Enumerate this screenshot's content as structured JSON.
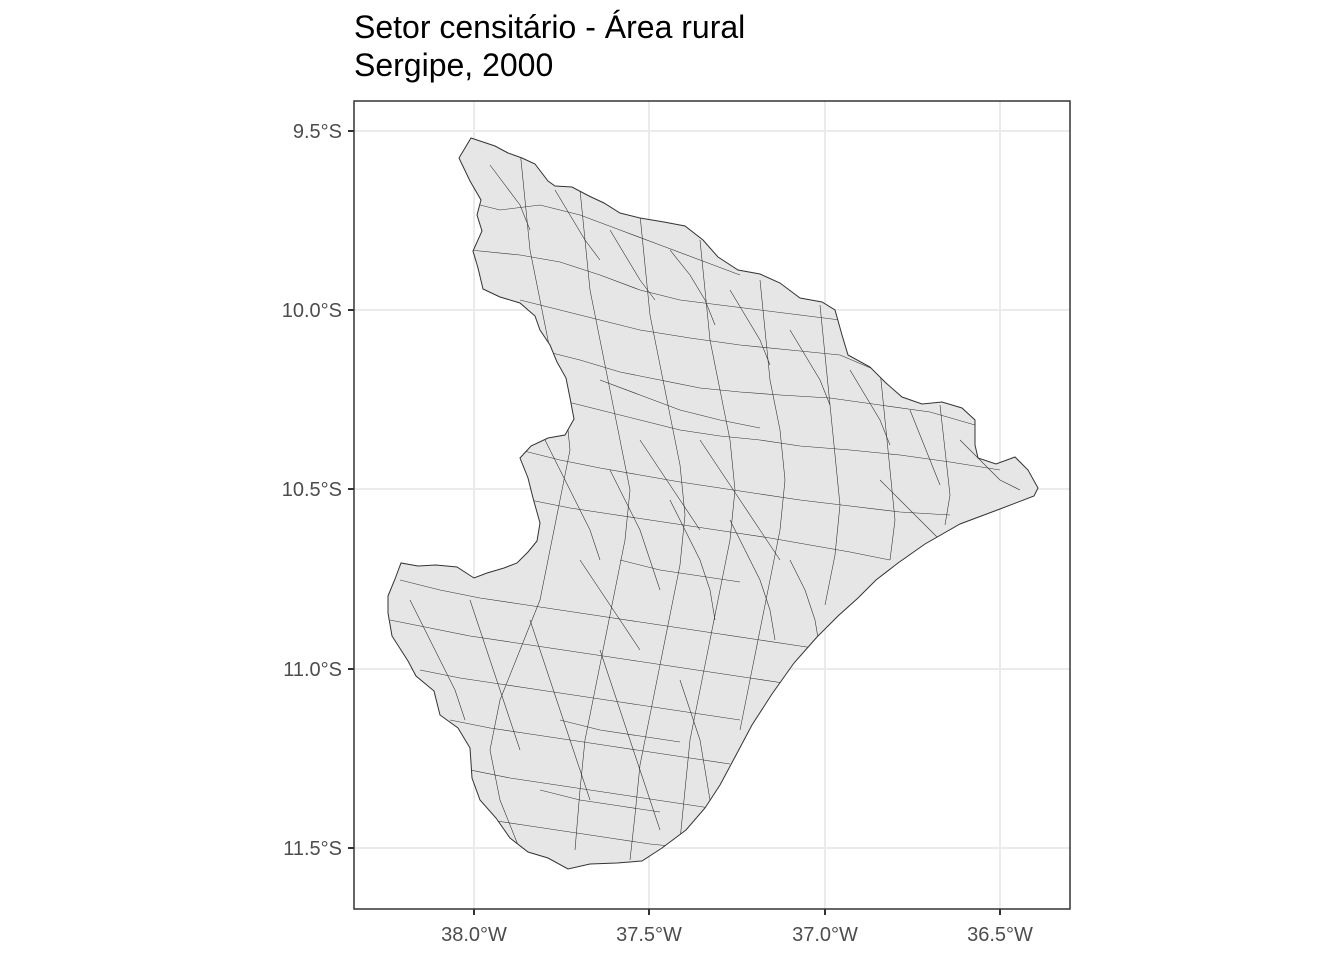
{
  "title": "Setor censitário - Área rural",
  "subtitle": "Sergipe, 2000",
  "axes": {
    "x_ticks": [
      "38.0°W",
      "37.5°W",
      "37.0°W",
      "36.5°W"
    ],
    "y_ticks": [
      "9.5°S",
      "10.0°S",
      "10.5°S",
      "11.0°S",
      "11.5°S"
    ]
  },
  "map": {
    "region": "Sergipe",
    "fill_color": "#e6e6e6",
    "border_color": "#333333",
    "grid_color": "#ebebeb",
    "panel_border": "#333333",
    "theme": "bw",
    "grid": true
  }
}
